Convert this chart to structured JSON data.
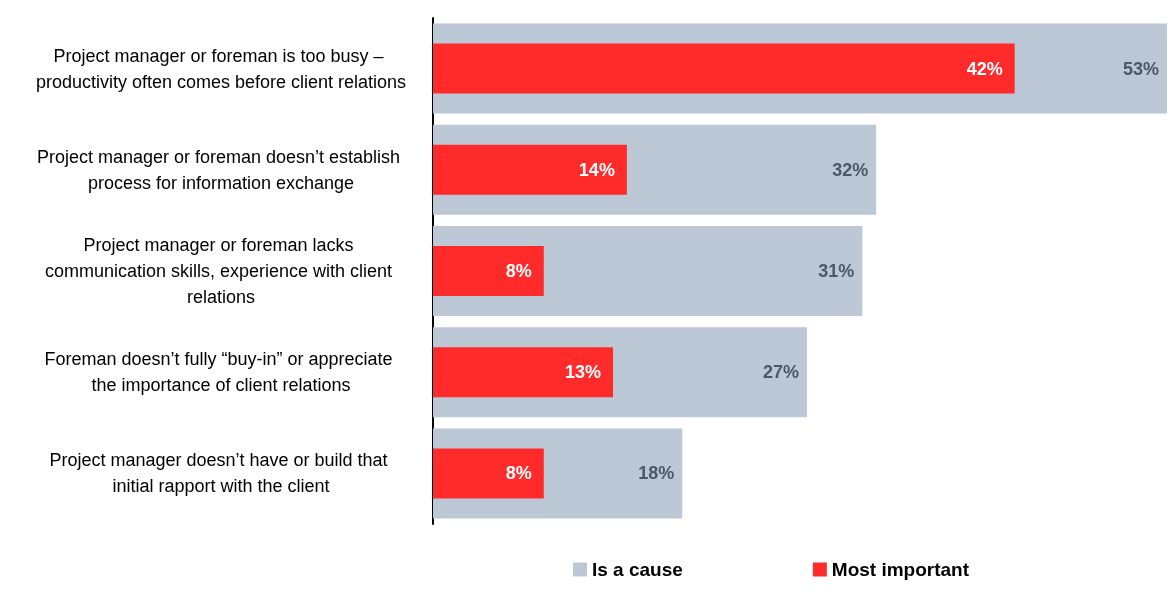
{
  "chart_data": {
    "type": "bar",
    "orientation": "horizontal",
    "categories": [
      "Project manager or foreman is too busy – productivity often comes before client relations",
      "Project manager or foreman doesn’t establish process for information exchange",
      "Project manager or foreman lacks communication skills, experience with client relations",
      "Foreman doesn’t fully “buy-in” or appreciate the importance of client relations",
      "Project manager doesn’t have or build that initial rapport with the client"
    ],
    "series": [
      {
        "name": "Is a cause",
        "color": "#bdc8d7",
        "values": [
          53,
          32,
          31,
          27,
          18
        ],
        "value_labels": [
          "53%",
          "32%",
          "31%",
          "27%",
          "18%"
        ]
      },
      {
        "name": "Most important",
        "color": "#ff2a2a",
        "values": [
          42,
          14,
          8,
          13,
          8
        ],
        "value_labels": [
          "42%",
          "14%",
          "8%",
          "13%",
          "8%"
        ]
      }
    ],
    "legend": "bottom",
    "grid": false
  }
}
